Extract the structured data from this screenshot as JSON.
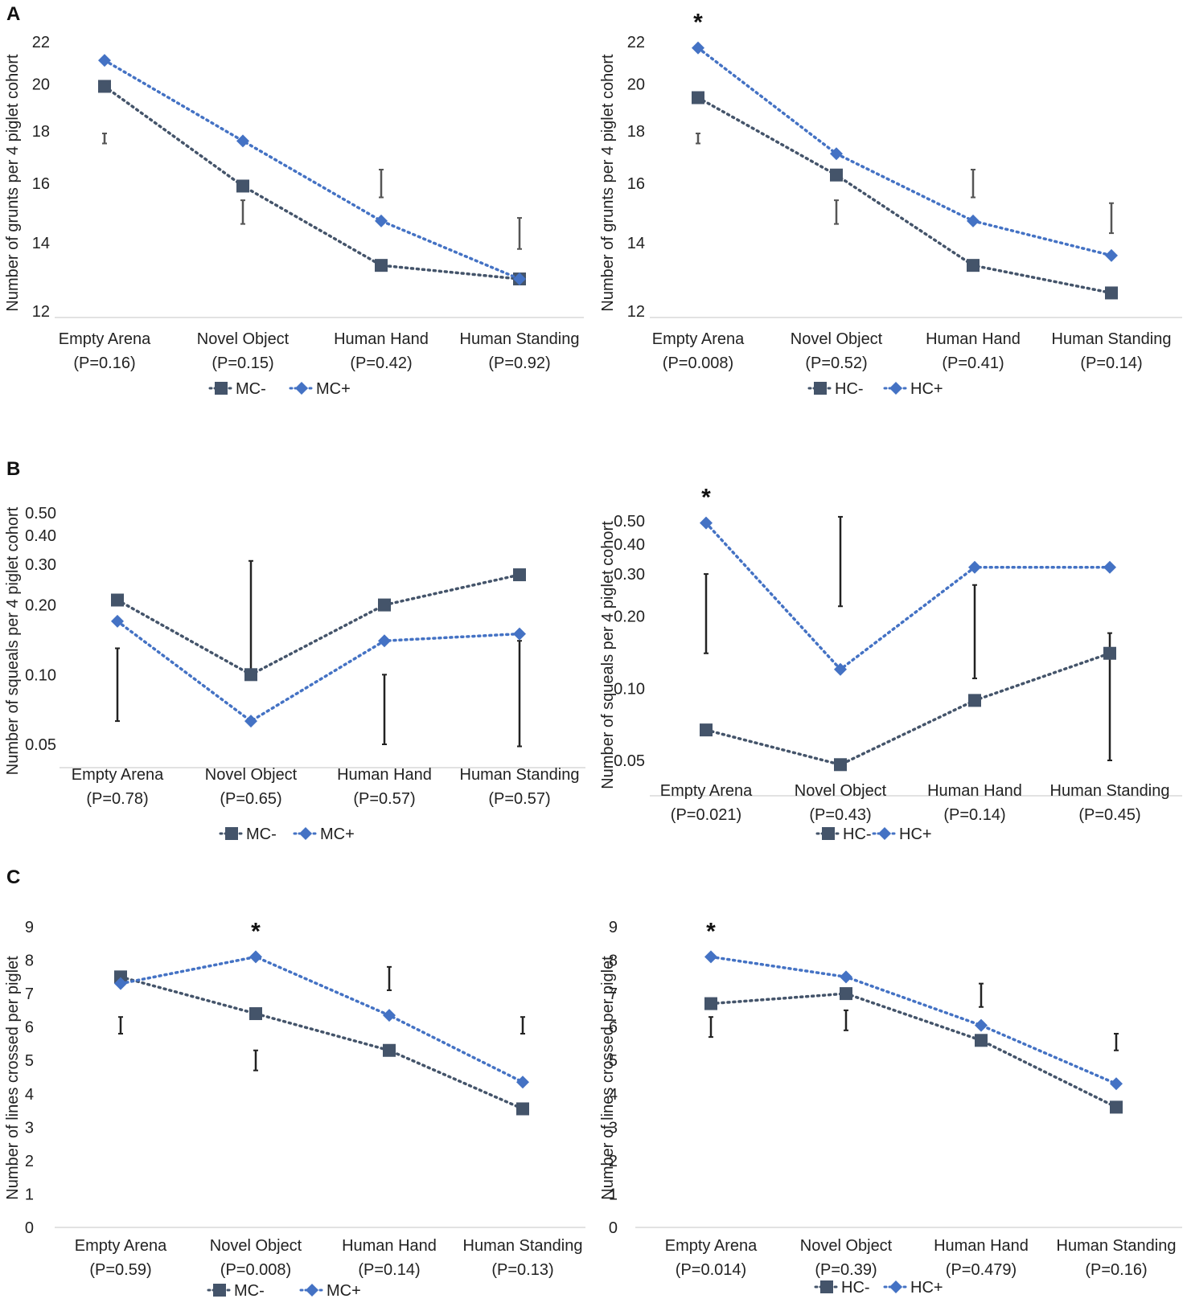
{
  "panel_letters": [
    "A",
    "B",
    "C"
  ],
  "colors": {
    "neg": "#44546a",
    "pos": "#4472c4",
    "errorbar": "#222222",
    "errorbar_light": "#555555",
    "axis": "#d9d9d9"
  },
  "chart_data": [
    {
      "id": "A-left",
      "type": "line",
      "yscale": "log",
      "ylabel": "Number of grunts per 4 piglet cohort",
      "yticks": [
        "12",
        "14",
        "16",
        "18",
        "20",
        "22"
      ],
      "categories": [
        "Empty Arena",
        "Novel Object",
        "Human Hand",
        "Human Standing"
      ],
      "pvalues": [
        "(P=0.16)",
        "(P=0.15)",
        "(P=0.42)",
        "(P=0.92)"
      ],
      "series": [
        {
          "name": "MC-",
          "marker": "square",
          "values": [
            19.9,
            15.9,
            13.3,
            12.9
          ]
        },
        {
          "name": "MC+",
          "marker": "diamond",
          "values": [
            21.1,
            17.6,
            14.7,
            12.9
          ]
        }
      ],
      "errorbars": [
        [
          17.5,
          17.9
        ],
        [
          14.6,
          15.4
        ],
        [
          15.5,
          16.5
        ],
        [
          13.8,
          14.8
        ]
      ],
      "stars": []
    },
    {
      "id": "A-right",
      "type": "line",
      "yscale": "log",
      "ylabel": "Number of grunts per 4 piglet cohort",
      "yticks": [
        "12",
        "14",
        "16",
        "18",
        "20",
        "22"
      ],
      "categories": [
        "Empty Arena",
        "Novel Object",
        "Human Hand",
        "Human Standing"
      ],
      "pvalues": [
        "(P=0.008)",
        "(P=0.52)",
        "(P=0.41)",
        "(P=0.14)"
      ],
      "series": [
        {
          "name": "HC-",
          "marker": "square",
          "values": [
            19.4,
            16.3,
            13.3,
            12.5
          ]
        },
        {
          "name": "HC+",
          "marker": "diamond",
          "values": [
            21.7,
            17.1,
            14.7,
            13.6
          ]
        }
      ],
      "errorbars": [
        [
          17.5,
          17.9
        ],
        [
          14.6,
          15.4
        ],
        [
          15.5,
          16.5
        ],
        [
          14.3,
          15.3
        ]
      ],
      "stars": [
        "*",
        "",
        "",
        ""
      ]
    },
    {
      "id": "B-left",
      "type": "line",
      "yscale": "log",
      "ylabel": "Number of squeals per 4 piglet cohort",
      "yticks": [
        "0.05",
        "0.10",
        "0.20",
        "0.30",
        "0.40",
        "0.50"
      ],
      "categories": [
        "Empty Arena",
        "Novel Object",
        "Human Hand",
        "Human Standing"
      ],
      "pvalues": [
        "(P=0.78)",
        "(P=0.65)",
        "(P=0.57)",
        "(P=0.57)"
      ],
      "series": [
        {
          "name": "MC-",
          "marker": "square",
          "values": [
            0.21,
            0.1,
            0.2,
            0.27
          ]
        },
        {
          "name": "MC+",
          "marker": "diamond",
          "values": [
            0.17,
            0.063,
            0.14,
            0.15
          ]
        }
      ],
      "errorbars": [
        [
          0.063,
          0.13
        ],
        [
          0.1,
          0.31
        ],
        [
          0.05,
          0.1
        ],
        [
          0.049,
          0.14
        ]
      ],
      "stars": []
    },
    {
      "id": "B-right",
      "type": "line",
      "yscale": "log",
      "ylabel": "Number of squeals per 4 piglet cohort",
      "yticks": [
        "0.05",
        "0.10",
        "0.20",
        "0.30",
        "0.40",
        "0.50"
      ],
      "categories": [
        "Empty Arena",
        "Novel Object",
        "Human Hand",
        "Human Standing"
      ],
      "pvalues": [
        "(P=0.021)",
        "(P=0.43)",
        "(P=0.14)",
        "(P=0.45)"
      ],
      "series": [
        {
          "name": "HC-",
          "marker": "square",
          "values": [
            0.067,
            0.048,
            0.089,
            0.14
          ]
        },
        {
          "name": "HC+",
          "marker": "diamond",
          "values": [
            0.49,
            0.12,
            0.32,
            0.32
          ]
        }
      ],
      "errorbars": [
        [
          0.14,
          0.3
        ],
        [
          0.22,
          0.52
        ],
        [
          0.11,
          0.27
        ],
        [
          0.05,
          0.17
        ]
      ],
      "stars": [
        "*",
        "",
        "",
        ""
      ]
    },
    {
      "id": "C-left",
      "type": "line",
      "yscale": "linear",
      "ylabel": "Number of lines crossed per piglet",
      "yticks": [
        "0",
        "1",
        "2",
        "3",
        "4",
        "5",
        "6",
        "7",
        "8",
        "9"
      ],
      "categories": [
        "Empty Arena",
        "Novel Object",
        "Human Hand",
        "Human Standing"
      ],
      "pvalues": [
        "(P=0.59)",
        "(P=0.008)",
        "(P=0.14)",
        "(P=0.13)"
      ],
      "series": [
        {
          "name": "MC-",
          "marker": "square",
          "values": [
            7.5,
            6.4,
            5.3,
            3.55
          ]
        },
        {
          "name": "MC+",
          "marker": "diamond",
          "values": [
            7.3,
            8.1,
            6.35,
            4.35
          ]
        }
      ],
      "errorbars": [
        [
          5.8,
          6.3
        ],
        [
          4.7,
          5.3
        ],
        [
          7.1,
          7.8
        ],
        [
          5.8,
          6.3
        ]
      ],
      "stars": [
        "",
        "*",
        "",
        ""
      ]
    },
    {
      "id": "C-right",
      "type": "line",
      "yscale": "linear",
      "ylabel": "Number of lines crossed per piglet",
      "yticks": [
        "0",
        "1",
        "2",
        "3",
        "4",
        "5",
        "6",
        "7",
        "8",
        "9"
      ],
      "categories": [
        "Empty Arena",
        "Novel Object",
        "Human Hand",
        "Human Standing"
      ],
      "pvalues": [
        "(P=0.014)",
        "(P=0.39)",
        "(P=0.479)",
        "(P=0.16)"
      ],
      "series": [
        {
          "name": "HC-",
          "marker": "square",
          "values": [
            6.7,
            7.0,
            5.6,
            3.6
          ]
        },
        {
          "name": "HC+",
          "marker": "diamond",
          "values": [
            8.1,
            7.5,
            6.05,
            4.3
          ]
        }
      ],
      "errorbars": [
        [
          5.7,
          6.3
        ],
        [
          5.9,
          6.5
        ],
        [
          6.6,
          7.3
        ],
        [
          5.3,
          5.8
        ]
      ],
      "stars": [
        "*",
        "",
        "",
        ""
      ]
    }
  ]
}
